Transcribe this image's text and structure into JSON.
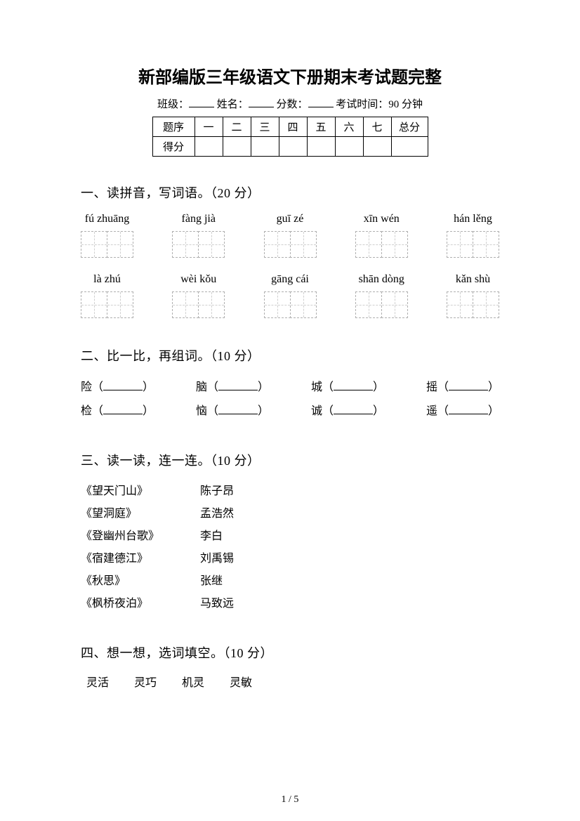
{
  "title": "新部编版三年级语文下册期末考试题完整",
  "info": {
    "class_label": "班级：",
    "name_label": "姓名：",
    "score_label": "分数：",
    "time_label": "考试时间：90 分钟"
  },
  "score_table": {
    "row1": [
      "题序",
      "一",
      "二",
      "三",
      "四",
      "五",
      "六",
      "七",
      "总分"
    ],
    "row2_header": "得分"
  },
  "section1": {
    "heading": "一、读拼音，写词语。（20 分）",
    "row1": [
      "fú zhuāng",
      "fàng jià",
      "guī zé",
      "xīn wén",
      "hán lěng"
    ],
    "row2": [
      "là zhú",
      "wèi kǒu",
      "gāng cái",
      "shān dòng",
      "kǎn shù"
    ]
  },
  "section2": {
    "heading": "二、比一比，再组词。（10 分）",
    "pairs": [
      [
        "险",
        "脑",
        "城",
        "摇"
      ],
      [
        "检",
        "恼",
        "诚",
        "遥"
      ]
    ]
  },
  "section3": {
    "heading": "三、读一读，连一连。（10 分）",
    "items": [
      {
        "left": "《望天门山》",
        "right": "陈子昂"
      },
      {
        "left": "《望洞庭》",
        "right": "孟浩然"
      },
      {
        "left": "《登幽州台歌》",
        "right": "李白"
      },
      {
        "left": "《宿建德江》",
        "right": "刘禹锡"
      },
      {
        "left": "《秋思》",
        "right": "张继"
      },
      {
        "left": "《枫桥夜泊》",
        "right": "马致远"
      }
    ]
  },
  "section4": {
    "heading": "四、想一想，选词填空。（10 分）",
    "choices": [
      "灵活",
      "灵巧",
      "机灵",
      "灵敏"
    ]
  },
  "page_number": "1 / 5",
  "colors": {
    "text": "#000000",
    "background": "#ffffff",
    "dash_border": "#b0b0b0",
    "dash_inner": "#d0d0d0"
  }
}
